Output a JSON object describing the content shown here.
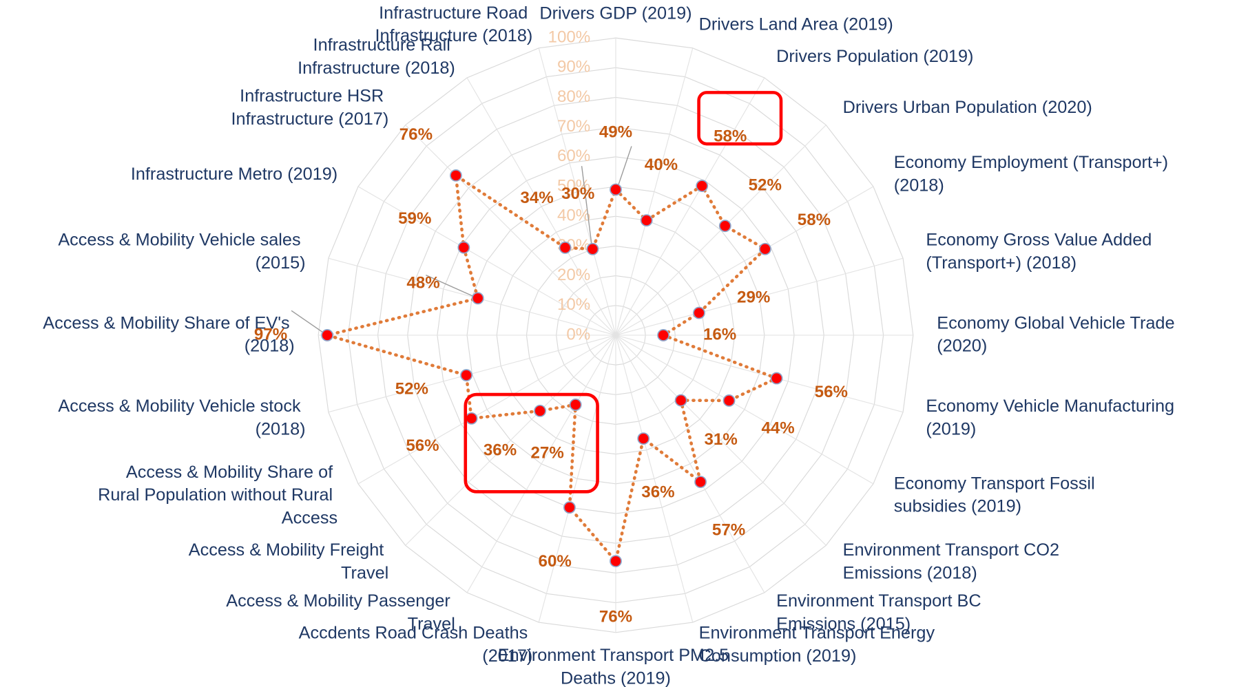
{
  "chart_data": {
    "type": "radar",
    "categories": [
      "Drivers GDP  (2019)",
      "Drivers Land Area  (2019)",
      "Drivers Population (2019)",
      "Drivers Urban Population (2020)",
      "Economy Employment (Transport+) (2018)",
      "Economy Gross Value Added (Transport+) (2018)",
      "Economy Global Vehicle Trade (2020)",
      "Economy Vehicle Manufacturing (2019)",
      "Economy Transport Fossil subsidies (2019)",
      "Environment Transport CO2 Emissions (2018)",
      "Environment Transport BC Emissions (2015)",
      "Environment Transport Energy Consumption (2019)",
      "Environment Transport PM2.5 Deaths (2019)",
      "Accdents Road Crash Deaths (2017)",
      "Access & Mobility Passenger Travel",
      "Access & Mobility Freight Travel",
      "Access & Mobility Share of Rural Population without Rural Access",
      "Access & Mobility Vehicle stock (2018)",
      "Access & Mobility Share of EV's (2018)",
      "Access & Mobility Vehicle sales (2015)",
      "Infrastructure Metro (2019)",
      "Infrastructure HSR Infrastructure (2017)",
      "Infrastructure Rail Infrastructure (2018)",
      "Infrastructure Road Infrastructure (2018)"
    ],
    "values": [
      49,
      40,
      58,
      52,
      58,
      29,
      16,
      56,
      44,
      31,
      57,
      36,
      76,
      60,
      27,
      36,
      56,
      52,
      97,
      48,
      59,
      76,
      34,
      30
    ],
    "value_labels": [
      "49%",
      "40%",
      "58%",
      "52%",
      "58%",
      "29%",
      "16%",
      "56%",
      "44%",
      "31%",
      "57%",
      "36%",
      "76%",
      "60%",
      "27%",
      "36%",
      "56%",
      "52%",
      "97%",
      "48%",
      "59%",
      "76%",
      "34%",
      "30%"
    ],
    "line_color": "#e07b39",
    "marker_color": "#ff0000",
    "ylim": [
      0,
      100
    ],
    "yticks": [
      {
        "value": 0,
        "label": "0%"
      },
      {
        "value": 10,
        "label": "10%"
      },
      {
        "value": 20,
        "label": "20%"
      },
      {
        "value": 30,
        "label": "30%"
      },
      {
        "value": 40,
        "label": "40%"
      },
      {
        "value": 50,
        "label": "50%"
      },
      {
        "value": 60,
        "label": "60%"
      },
      {
        "value": 70,
        "label": "70%"
      },
      {
        "value": 80,
        "label": "80%"
      },
      {
        "value": 90,
        "label": "90%"
      },
      {
        "value": 100,
        "label": "100%"
      }
    ],
    "grid": true
  }
}
